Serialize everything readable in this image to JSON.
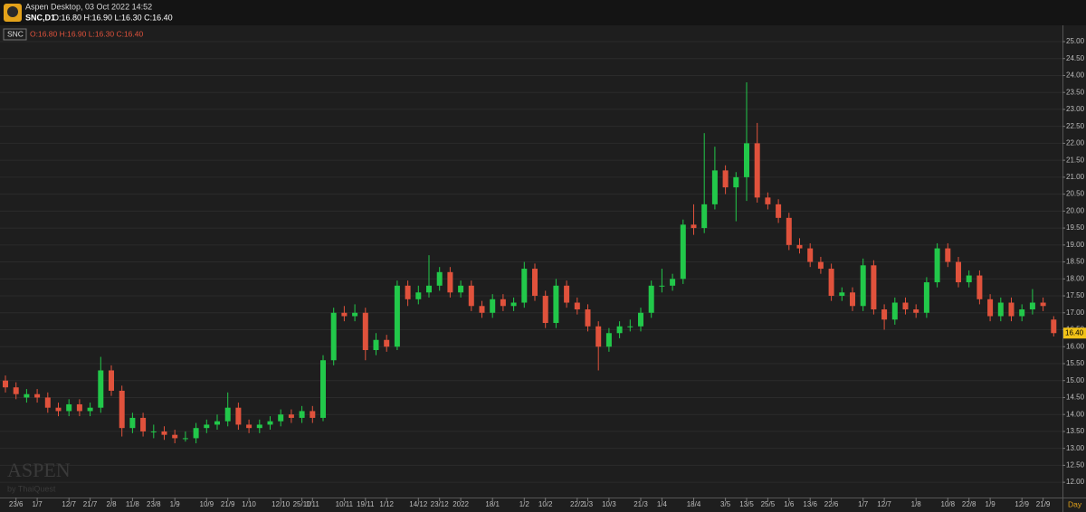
{
  "chart_data": {
    "type": "candlestick",
    "title": "Aspen Desktop, 03 Oct 2022 14:52",
    "subtitle": "SNC,D1",
    "ohlc_text": "O:16.80 H:16.90 L:16.30 C:16.40",
    "legend_symbol": "SNC",
    "legend_ohlc": "O:16.80 H:16.90 L:16.30 C:16.40",
    "watermark": "ASPEN",
    "watermark_sub": "by ThaiQuest",
    "timeframe_label": "Day",
    "last_label": "16.40",
    "up_color": "#22c84a",
    "down_color": "#e0523c",
    "grid": true,
    "categories": [
      null,
      "23/6",
      null,
      "1/7",
      null,
      null,
      "12/7",
      null,
      "21/7",
      null,
      "2/8",
      null,
      "11/8",
      null,
      "23/8",
      null,
      "1/9",
      null,
      null,
      "10/9",
      null,
      "21/9",
      null,
      "1/10",
      null,
      null,
      "12/10",
      null,
      "25/10",
      "1/11",
      null,
      null,
      "10/11",
      null,
      "19/11",
      null,
      "1/12",
      null,
      null,
      "14/12",
      null,
      "23/12",
      null,
      "2022",
      null,
      null,
      "18/1",
      null,
      null,
      "1/2",
      null,
      "10/2",
      null,
      null,
      "22/2",
      "1/3",
      null,
      "10/3",
      null,
      null,
      "21/3",
      null,
      "1/4",
      null,
      null,
      "18/4",
      null,
      null,
      "3/5",
      null,
      "13/5",
      null,
      "25/5",
      null,
      "1/6",
      null,
      "13/6",
      null,
      "22/6",
      null,
      null,
      "1/7",
      null,
      "12/7",
      null,
      null,
      "1/8",
      null,
      null,
      "10/8",
      null,
      "22/8",
      null,
      "1/9",
      null,
      null,
      "12/9",
      null,
      "21/9",
      null
    ],
    "open": [
      15.0,
      14.8,
      14.5,
      14.6,
      14.5,
      14.2,
      14.1,
      14.3,
      14.1,
      14.2,
      15.3,
      14.7,
      13.6,
      13.9,
      13.5,
      13.5,
      13.4,
      13.3,
      13.3,
      13.6,
      13.7,
      13.8,
      14.2,
      13.7,
      13.6,
      13.7,
      13.8,
      14.0,
      13.9,
      14.1,
      13.9,
      15.6,
      17.0,
      16.9,
      17.0,
      15.9,
      16.2,
      16.0,
      17.8,
      17.4,
      17.6,
      17.8,
      18.2,
      17.6,
      17.8,
      17.2,
      17.0,
      17.4,
      17.2,
      17.3,
      18.3,
      17.5,
      16.7,
      17.8,
      17.3,
      17.1,
      16.6,
      16.0,
      16.4,
      16.6,
      16.6,
      17.0,
      17.8,
      17.8,
      18.0,
      19.6,
      19.5,
      20.2,
      21.2,
      20.7,
      21.0,
      22.0,
      20.4,
      20.2,
      19.8,
      19.0,
      18.9,
      18.5,
      18.3,
      17.5,
      17.6,
      17.2,
      18.4,
      17.1,
      16.8,
      17.3,
      17.1,
      17.0,
      17.9,
      18.9,
      18.5,
      17.9,
      18.1,
      17.4,
      16.9,
      17.3,
      16.9,
      17.1,
      17.3,
      16.8
    ],
    "high": [
      15.15,
      14.95,
      14.75,
      14.75,
      14.65,
      14.35,
      14.45,
      14.45,
      14.35,
      15.7,
      15.45,
      14.85,
      14.05,
      14.05,
      13.7,
      13.65,
      13.55,
      13.5,
      13.75,
      13.85,
      14.0,
      14.65,
      14.35,
      13.85,
      13.85,
      13.95,
      14.15,
      14.15,
      14.25,
      14.25,
      15.75,
      17.15,
      17.2,
      17.25,
      17.15,
      16.4,
      16.35,
      17.95,
      17.95,
      17.8,
      18.7,
      18.35,
      18.35,
      17.95,
      17.95,
      17.35,
      17.55,
      17.55,
      17.45,
      18.5,
      18.45,
      17.65,
      18.0,
      17.95,
      17.45,
      17.25,
      16.75,
      16.55,
      16.75,
      16.8,
      17.15,
      17.95,
      18.3,
      18.15,
      19.75,
      20.2,
      22.3,
      21.9,
      21.35,
      21.15,
      23.8,
      22.6,
      20.55,
      20.35,
      19.95,
      19.2,
      19.05,
      18.65,
      18.45,
      17.75,
      17.75,
      18.6,
      18.55,
      17.25,
      17.45,
      17.45,
      17.25,
      18.05,
      19.05,
      19.05,
      18.65,
      18.25,
      18.25,
      17.55,
      17.45,
      17.45,
      17.25,
      17.7,
      17.45,
      16.9
    ],
    "low": [
      14.65,
      14.45,
      14.35,
      14.35,
      14.05,
      13.95,
      13.95,
      13.95,
      13.95,
      14.05,
      14.55,
      13.35,
      13.45,
      13.35,
      13.3,
      13.25,
      13.15,
      13.2,
      13.15,
      13.45,
      13.55,
      13.65,
      13.55,
      13.45,
      13.45,
      13.55,
      13.65,
      13.75,
      13.75,
      13.75,
      13.8,
      15.45,
      16.75,
      16.75,
      15.6,
      15.75,
      15.85,
      15.9,
      17.2,
      17.25,
      17.45,
      17.65,
      17.45,
      17.45,
      17.05,
      16.85,
      16.85,
      17.05,
      17.05,
      17.15,
      17.35,
      16.55,
      16.55,
      17.15,
      16.95,
      16.45,
      15.3,
      15.85,
      16.25,
      16.45,
      16.45,
      16.85,
      17.6,
      17.65,
      17.85,
      19.3,
      19.35,
      20.05,
      20.5,
      19.7,
      20.3,
      20.25,
      20.05,
      19.65,
      18.85,
      18.75,
      18.35,
      18.15,
      17.35,
      17.35,
      17.05,
      17.05,
      16.95,
      16.5,
      16.65,
      16.95,
      16.85,
      16.85,
      17.75,
      18.35,
      17.75,
      17.75,
      17.25,
      16.75,
      16.75,
      16.75,
      16.75,
      16.95,
      17.05,
      16.3
    ],
    "close": [
      14.8,
      14.6,
      14.6,
      14.5,
      14.2,
      14.1,
      14.3,
      14.1,
      14.2,
      15.3,
      14.7,
      13.6,
      13.9,
      13.5,
      13.5,
      13.4,
      13.3,
      13.3,
      13.6,
      13.7,
      13.8,
      14.2,
      13.7,
      13.6,
      13.7,
      13.8,
      14.0,
      13.9,
      14.1,
      13.9,
      15.6,
      17.0,
      16.9,
      17.0,
      15.9,
      16.2,
      16.0,
      17.8,
      17.4,
      17.6,
      17.8,
      18.2,
      17.6,
      17.8,
      17.2,
      17.0,
      17.4,
      17.2,
      17.3,
      18.3,
      17.5,
      16.7,
      17.8,
      17.3,
      17.1,
      16.6,
      16.0,
      16.4,
      16.6,
      16.6,
      17.0,
      17.8,
      17.8,
      18.0,
      19.6,
      19.5,
      20.2,
      21.2,
      20.7,
      21.0,
      22.0,
      20.4,
      20.2,
      19.8,
      19.0,
      18.9,
      18.5,
      18.3,
      17.5,
      17.6,
      17.2,
      18.4,
      17.1,
      16.8,
      17.3,
      17.1,
      17.0,
      17.9,
      18.9,
      18.5,
      17.9,
      18.1,
      17.4,
      16.9,
      17.3,
      16.9,
      17.1,
      17.3,
      17.2,
      16.4
    ],
    "ylim": [
      11.55,
      25.48
    ],
    "yticks": [
      {
        "value": 12,
        "label": "12.00"
      },
      {
        "value": 12.5,
        "label": "12.50"
      },
      {
        "value": 13,
        "label": "13.00"
      },
      {
        "value": 13.5,
        "label": "13.50"
      },
      {
        "value": 14,
        "label": "14.00"
      },
      {
        "value": 14.5,
        "label": "14.50"
      },
      {
        "value": 15,
        "label": "15.00"
      },
      {
        "value": 15.5,
        "label": "15.50"
      },
      {
        "value": 16,
        "label": "16.00"
      },
      {
        "value": 16.5,
        "label": "16.50"
      },
      {
        "value": 17,
        "label": "17.00"
      },
      {
        "value": 17.5,
        "label": "17.50"
      },
      {
        "value": 18,
        "label": "18.00"
      },
      {
        "value": 18.5,
        "label": "18.50"
      },
      {
        "value": 19,
        "label": "19.00"
      },
      {
        "value": 19.5,
        "label": "19.50"
      },
      {
        "value": 20,
        "label": "20.00"
      },
      {
        "value": 20.5,
        "label": "20.50"
      },
      {
        "value": 21,
        "label": "21.00"
      },
      {
        "value": 21.5,
        "label": "21.50"
      },
      {
        "value": 22,
        "label": "22.00"
      },
      {
        "value": 22.5,
        "label": "22.50"
      },
      {
        "value": 23,
        "label": "23.00"
      },
      {
        "value": 23.5,
        "label": "23.50"
      },
      {
        "value": 24,
        "label": "24.00"
      },
      {
        "value": 24.5,
        "label": "24.50"
      },
      {
        "value": 25,
        "label": "25.00"
      }
    ]
  }
}
